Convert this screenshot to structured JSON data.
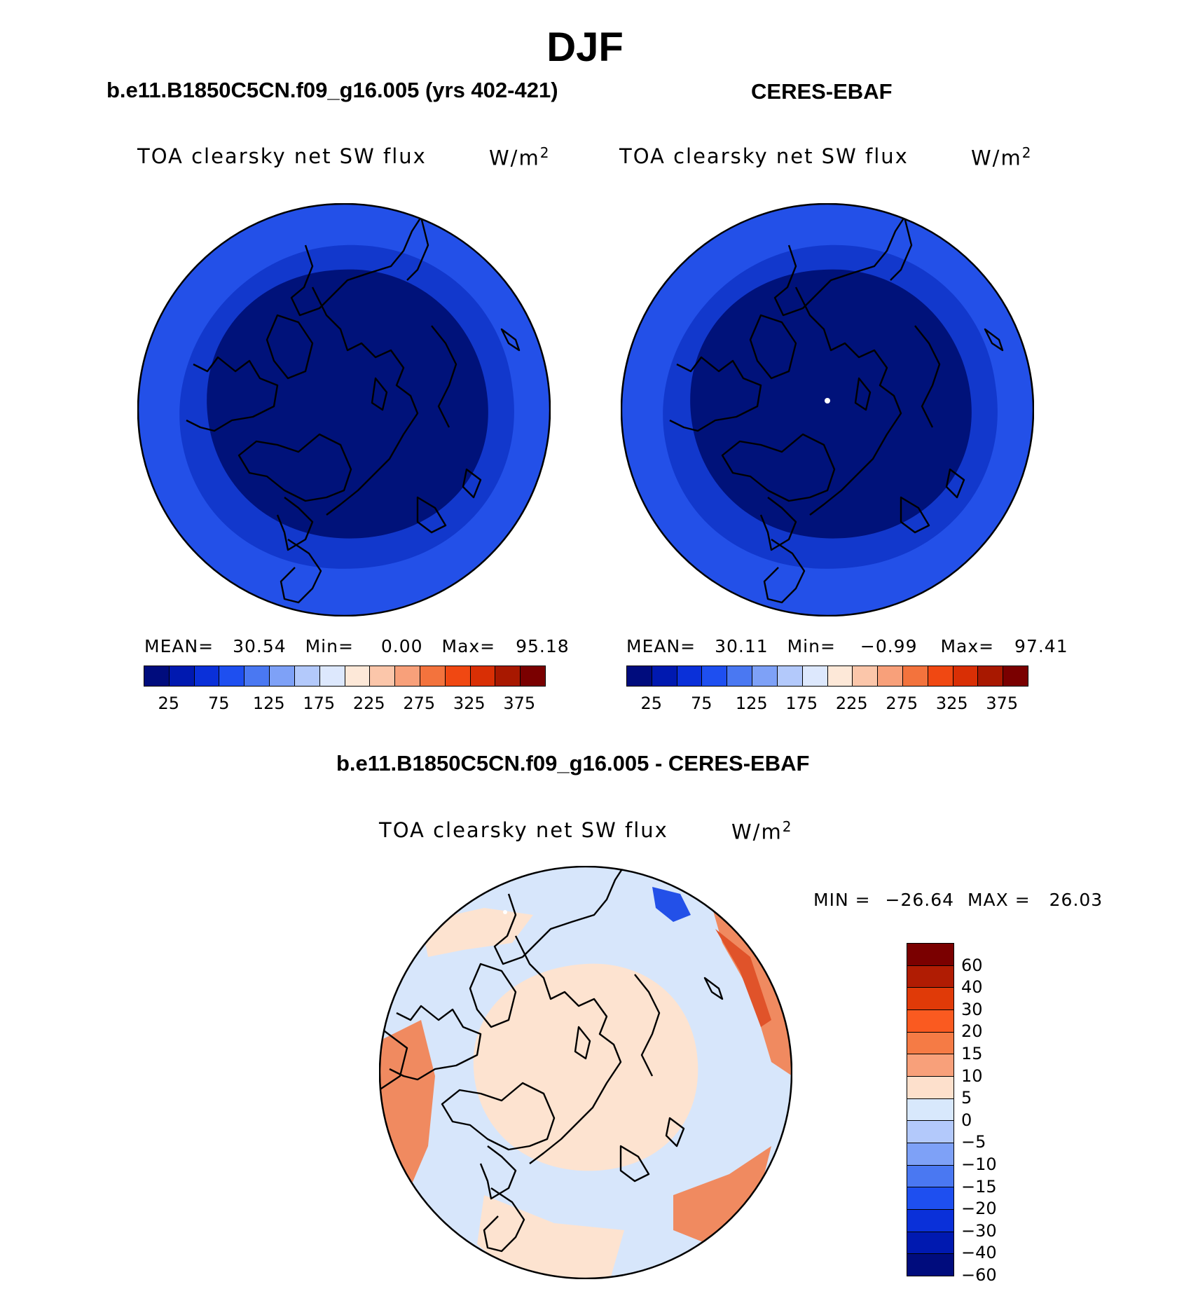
{
  "figure": {
    "title": "DJF",
    "left_panel": {
      "title": "b.e11.B1850C5CN.f09_g16.005 (yrs 402-421)",
      "variable": "TOA clearsky net SW flux",
      "units": "W/m",
      "units_exp": "2",
      "mean_label": "MEAN=",
      "mean": "30.54",
      "min_label": "Min=",
      "min": "0.00",
      "max_label": "Max=",
      "max": "95.18"
    },
    "right_panel": {
      "title": "CERES-EBAF",
      "variable": "TOA clearsky net SW flux",
      "units": "W/m",
      "units_exp": "2",
      "mean_label": "MEAN=",
      "mean": "30.11",
      "min_label": "Min=",
      "min": "−0.99",
      "max_label": "Max=",
      "max": "97.41"
    },
    "diff_panel": {
      "title": "b.e11.B1850C5CN.f09_g16.005 - CERES-EBAF",
      "variable": "TOA clearsky net SW flux",
      "units": "W/m",
      "units_exp": "2",
      "min_label": "MIN =",
      "min": "−26.64",
      "max_label": "MAX =",
      "max": "26.03"
    }
  },
  "colorbar_abs": {
    "colors": [
      "#000c7d",
      "#0019b0",
      "#0a30d9",
      "#1e4ff0",
      "#4a78f2",
      "#7ea1f7",
      "#b3c9fb",
      "#dde8fd",
      "#fde8d8",
      "#fbc6aa",
      "#f8a07a",
      "#f3733d",
      "#f04812",
      "#d92f05",
      "#a81800",
      "#7a0000"
    ],
    "labels": [
      "25",
      "75",
      "125",
      "175",
      "225",
      "275",
      "325",
      "375"
    ]
  },
  "colorbar_diff": {
    "colors": [
      "#7a0000",
      "#b01c03",
      "#e03a08",
      "#fa5a20",
      "#f57b45",
      "#f8a07a",
      "#fde0cc",
      "#d8e8fc",
      "#b3c9fb",
      "#7ea1f7",
      "#4a78f2",
      "#1e4ff0",
      "#0a30d9",
      "#0019b0",
      "#000c7d"
    ],
    "labels": [
      "60",
      "40",
      "30",
      "20",
      "15",
      "10",
      "5",
      "0",
      "−5",
      "−10",
      "−15",
      "−20",
      "−30",
      "−40",
      "−60"
    ]
  },
  "colors": {
    "map_outer": "#2350e8",
    "map_ring": "#1238cc",
    "map_inner": "#00127a",
    "diff_base": "#fde3d0",
    "diff_light_blue": "#d7e6fb",
    "diff_red": "#f08a60",
    "diff_deep_red": "#e0532a"
  }
}
